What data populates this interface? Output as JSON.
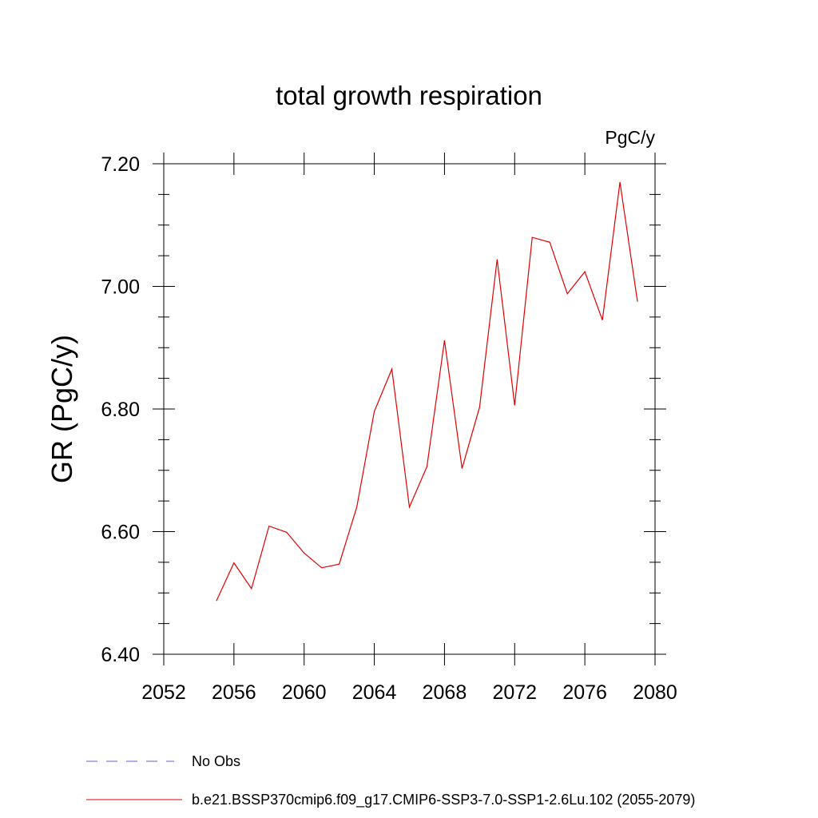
{
  "chart_data": {
    "type": "line",
    "title": "total growth respiration",
    "units_label": "PgC/y",
    "ylabel": "GR  (PgC/y)",
    "xlabel": "",
    "xlim": [
      2052,
      2080
    ],
    "ylim": [
      6.4,
      7.2
    ],
    "x_ticks": [
      2052,
      2056,
      2060,
      2064,
      2068,
      2072,
      2076,
      2080
    ],
    "y_ticks": [
      6.4,
      6.6,
      6.8,
      7.0,
      7.2
    ],
    "x_tick_labels": [
      "2052",
      "2056",
      "2060",
      "2064",
      "2068",
      "2072",
      "2076",
      "2080"
    ],
    "y_tick_labels": [
      "6.40",
      "6.60",
      "6.80",
      "7.00",
      "7.20"
    ],
    "grid": false,
    "legend_placement": "bottom-left",
    "series": [
      {
        "name": "b.e21.BSSP370cmip6.f09_g17.CMIP6-SSP3-7.0-SSP1-2.6Lu.102 (2055-2079)",
        "color": "#e00000",
        "style": "solid",
        "x": [
          2055,
          2056,
          2057,
          2058,
          2059,
          2060,
          2061,
          2062,
          2063,
          2064,
          2065,
          2066,
          2067,
          2068,
          2069,
          2070,
          2071,
          2072,
          2073,
          2074,
          2075,
          2076,
          2077,
          2078,
          2079
        ],
        "y": [
          6.487,
          6.549,
          6.507,
          6.609,
          6.599,
          6.565,
          6.541,
          6.547,
          6.64,
          6.796,
          6.865,
          6.64,
          6.706,
          6.912,
          6.703,
          6.803,
          7.044,
          6.806,
          7.08,
          7.072,
          6.988,
          7.024,
          6.945,
          7.17,
          6.975
        ]
      }
    ],
    "legend": [
      {
        "label": "No Obs",
        "color": "#6a5acd",
        "style": "dashed"
      },
      {
        "label": "b.e21.BSSP370cmip6.f09_g17.CMIP6-SSP3-7.0-SSP1-2.6Lu.102 (2055-2079)",
        "color": "#e00000",
        "style": "solid"
      }
    ]
  }
}
